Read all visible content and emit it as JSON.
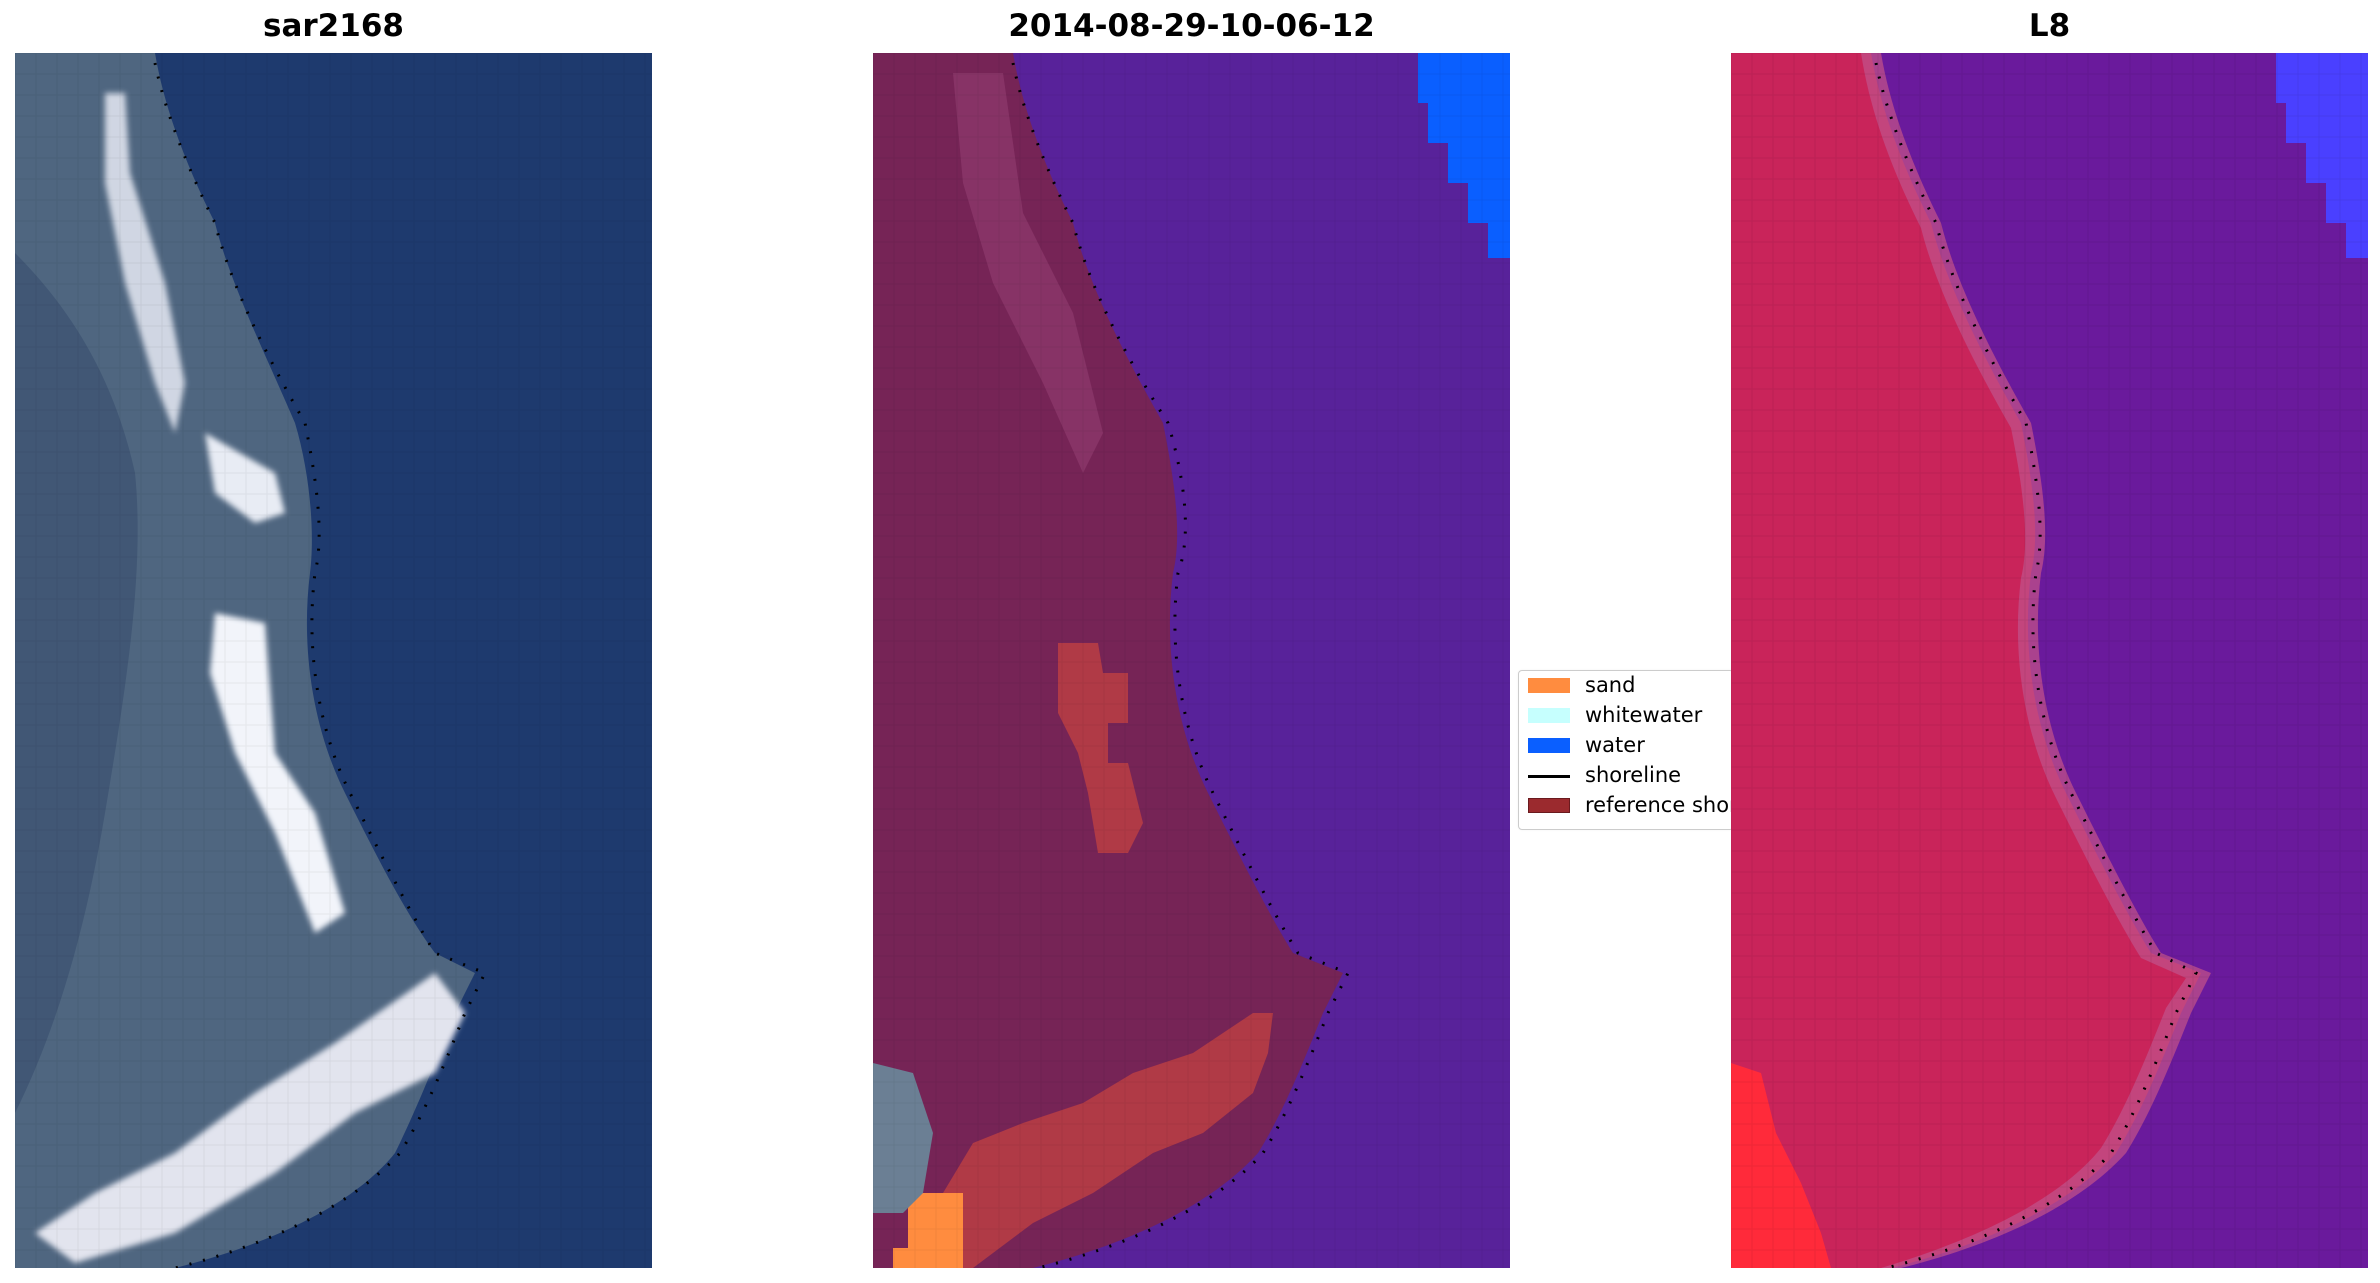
{
  "panels": [
    {
      "title": "sar2168"
    },
    {
      "title": "2014-08-29-10-06-12"
    },
    {
      "title": "L8"
    }
  ],
  "legend": {
    "items": [
      {
        "label": "sand",
        "color": "#ff8c3f",
        "kind": "patch"
      },
      {
        "label": "whitewater",
        "color": "#c6fffe",
        "kind": "patch"
      },
      {
        "label": "water",
        "color": "#0a5fff",
        "kind": "patch"
      },
      {
        "label": "shoreline",
        "color": "#000000",
        "kind": "line"
      },
      {
        "label": "reference shoreline",
        "color": "#9b2a2e",
        "kind": "patch"
      }
    ]
  },
  "colors": {
    "sea_rgb": "#1e3a6e",
    "land_rgb": "#4f6680",
    "surf_rgb": "#dfe3ee",
    "sea_class": "#58229a",
    "land_class": "#762456",
    "ref_class": "#b03a46",
    "sea_ndwi": "#6a1a9c",
    "land_ndwi": "#c9245a",
    "water_corner": "#0a5fff"
  }
}
